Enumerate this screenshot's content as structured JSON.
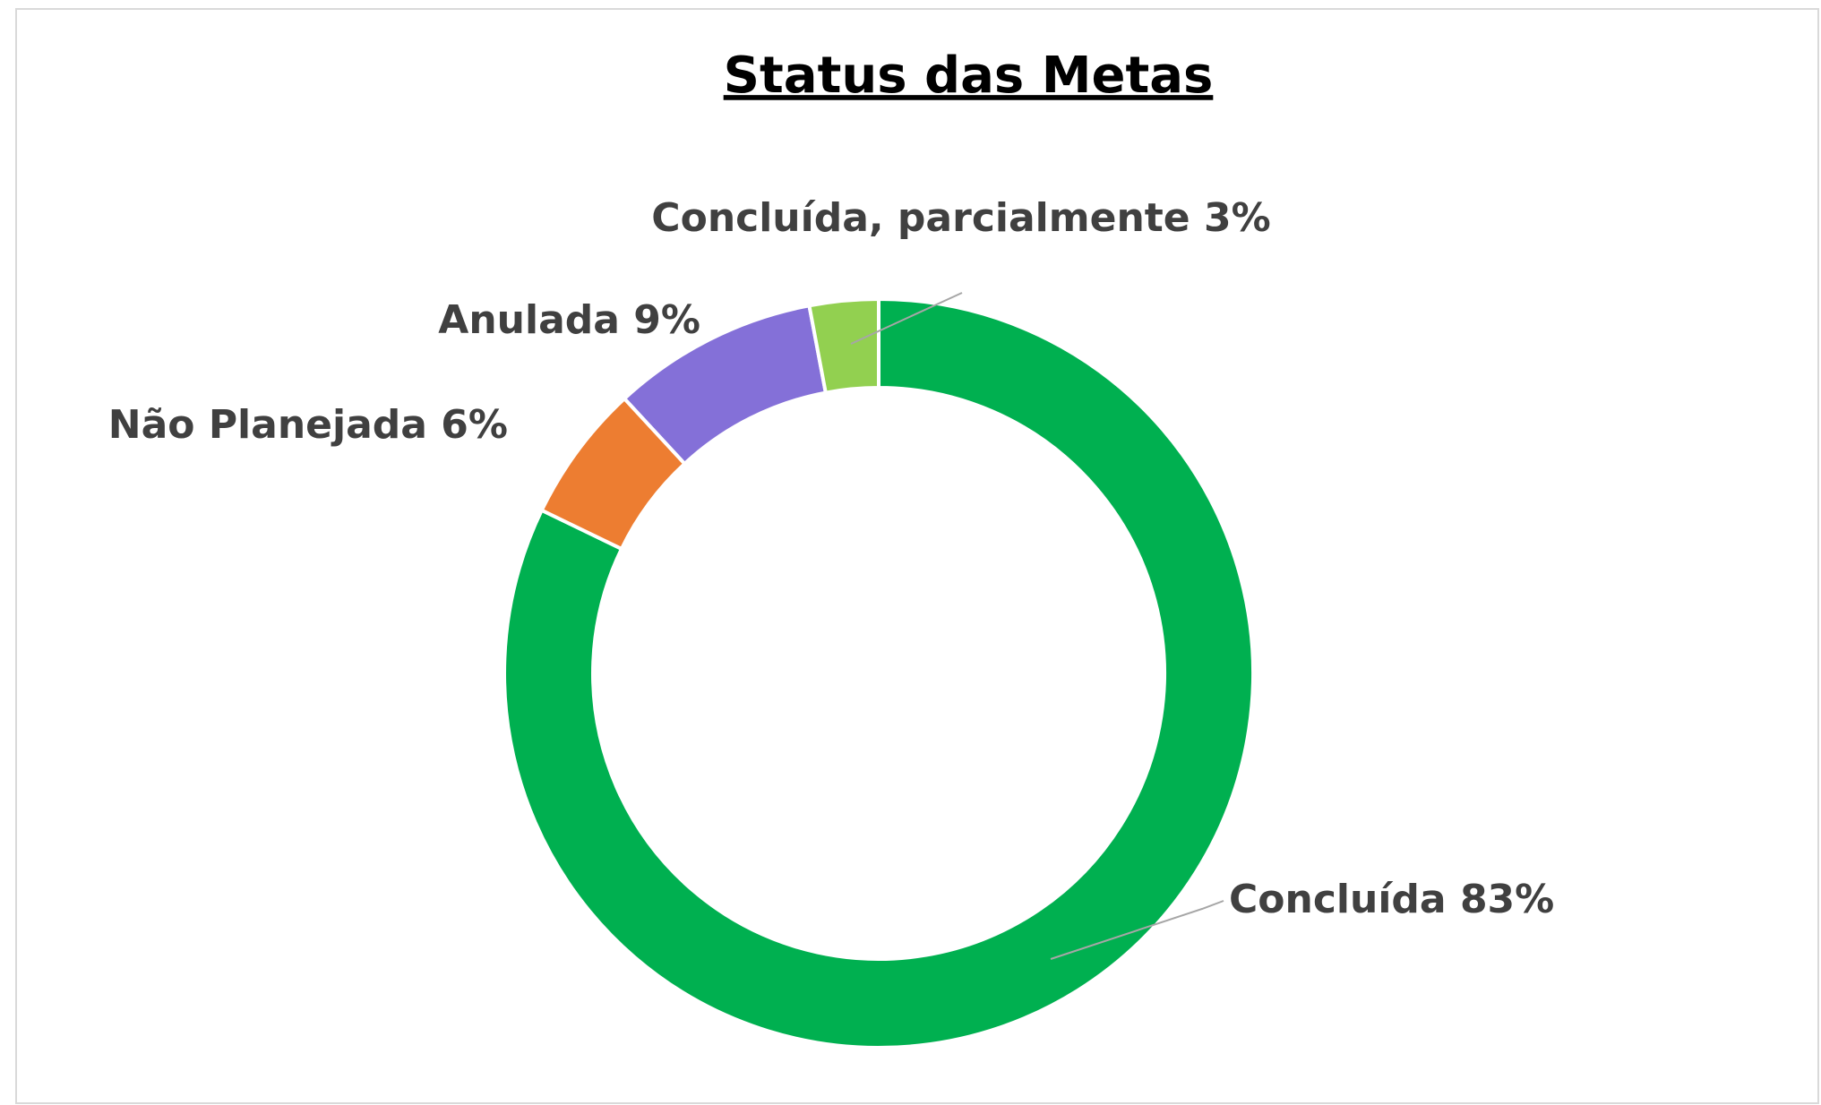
{
  "chart_data": {
    "type": "donut",
    "title": "Status das Metas",
    "categories": [
      "Concluída",
      "Não Planejada",
      "Anulada",
      "Concluída, parcialmente"
    ],
    "values": [
      83,
      6,
      9,
      3
    ],
    "value_labels": [
      "83%",
      "6%",
      "9%",
      "3%"
    ],
    "colors": [
      "#00b050",
      "#ed7d31",
      "#8470d8",
      "#92d050"
    ]
  }
}
